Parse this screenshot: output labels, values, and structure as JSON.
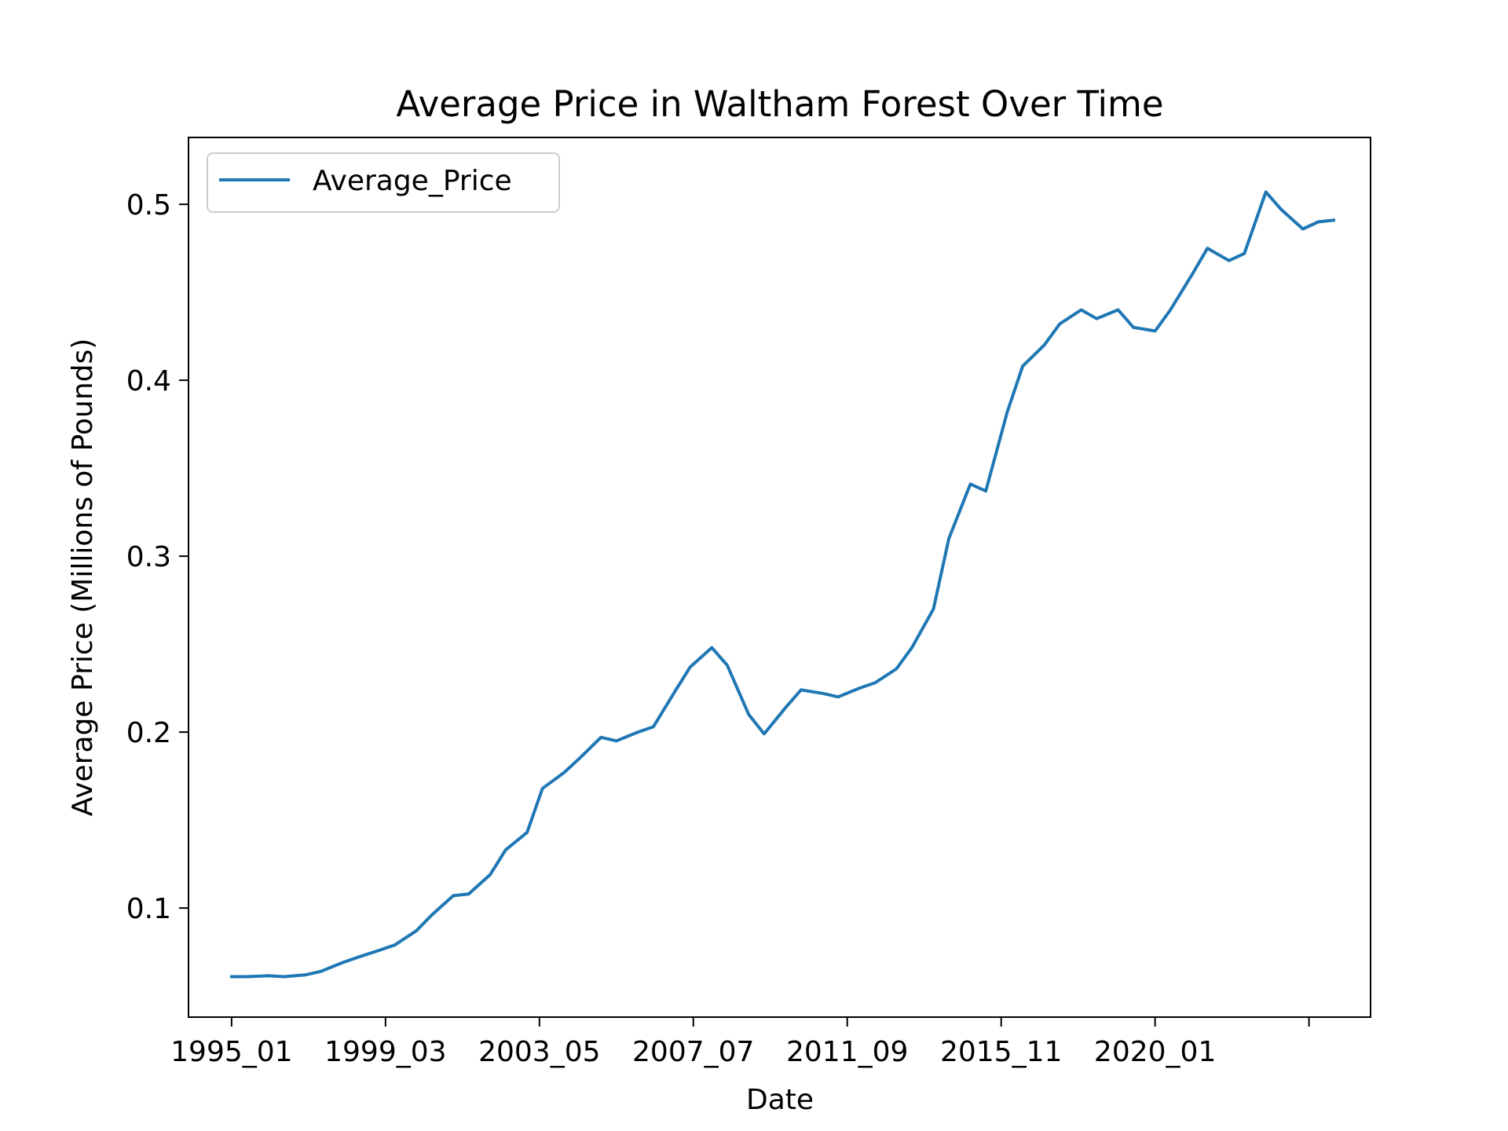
{
  "chart_data": {
    "type": "line",
    "title": "Average Price in Waltham Forest Over Time",
    "xlabel": "Date",
    "ylabel": "Average Price (Millions of Pounds)",
    "x_tick_labels": [
      "1995_01",
      "1999_03",
      "2003_05",
      "2007_07",
      "2011_09",
      "2015_11",
      "2020_01",
      ""
    ],
    "y_ticks": [
      0.1,
      0.2,
      0.3,
      0.4,
      0.5
    ],
    "y_tick_labels": [
      "0.1",
      "0.2",
      "0.3",
      "0.4",
      "0.5"
    ],
    "ylim": [
      0.038,
      0.538
    ],
    "xlim": [
      "1993_11",
      "2025_11"
    ],
    "legend": "top-left",
    "grid": false,
    "series": [
      {
        "name": "Average_Price",
        "color": "#1f77b4",
        "points": [
          [
            "1995_01",
            0.061
          ],
          [
            "1995_06",
            0.061
          ],
          [
            "1996_01",
            0.0615
          ],
          [
            "1996_06",
            0.061
          ],
          [
            "1997_01",
            0.062
          ],
          [
            "1997_06",
            0.064
          ],
          [
            "1998_01",
            0.069
          ],
          [
            "1998_06",
            0.072
          ],
          [
            "1999_01",
            0.076
          ],
          [
            "1999_06",
            0.079
          ],
          [
            "2000_01",
            0.087
          ],
          [
            "2000_06",
            0.096
          ],
          [
            "2001_01",
            0.107
          ],
          [
            "2001_06",
            0.108
          ],
          [
            "2002_01",
            0.119
          ],
          [
            "2002_06",
            0.133
          ],
          [
            "2003_01",
            0.143
          ],
          [
            "2003_06",
            0.168
          ],
          [
            "2004_01",
            0.177
          ],
          [
            "2004_06",
            0.185
          ],
          [
            "2005_01",
            0.197
          ],
          [
            "2005_06",
            0.195
          ],
          [
            "2006_01",
            0.2
          ],
          [
            "2006_06",
            0.203
          ],
          [
            "2007_01",
            0.223
          ],
          [
            "2007_06",
            0.237
          ],
          [
            "2008_01",
            0.248
          ],
          [
            "2008_06",
            0.238
          ],
          [
            "2009_01",
            0.21
          ],
          [
            "2009_06",
            0.199
          ],
          [
            "2010_01",
            0.214
          ],
          [
            "2010_06",
            0.224
          ],
          [
            "2011_01",
            0.222
          ],
          [
            "2011_06",
            0.22
          ],
          [
            "2012_01",
            0.225
          ],
          [
            "2012_06",
            0.228
          ],
          [
            "2013_01",
            0.236
          ],
          [
            "2013_06",
            0.248
          ],
          [
            "2014_01",
            0.27
          ],
          [
            "2014_06",
            0.31
          ],
          [
            "2015_01",
            0.341
          ],
          [
            "2015_06",
            0.337
          ],
          [
            "2016_01",
            0.382
          ],
          [
            "2016_06",
            0.408
          ],
          [
            "2017_01",
            0.42
          ],
          [
            "2017_06",
            0.432
          ],
          [
            "2018_01",
            0.44
          ],
          [
            "2018_06",
            0.435
          ],
          [
            "2019_01",
            0.44
          ],
          [
            "2019_06",
            0.43
          ],
          [
            "2020_01",
            0.428
          ],
          [
            "2020_06",
            0.44
          ],
          [
            "2021_01",
            0.46
          ],
          [
            "2021_06",
            0.475
          ],
          [
            "2022_01",
            0.468
          ],
          [
            "2022_06",
            0.472
          ],
          [
            "2023_01",
            0.507
          ],
          [
            "2023_06",
            0.497
          ],
          [
            "2024_01",
            0.486
          ],
          [
            "2024_06",
            0.49
          ],
          [
            "2024_11",
            0.491
          ]
        ]
      }
    ]
  }
}
